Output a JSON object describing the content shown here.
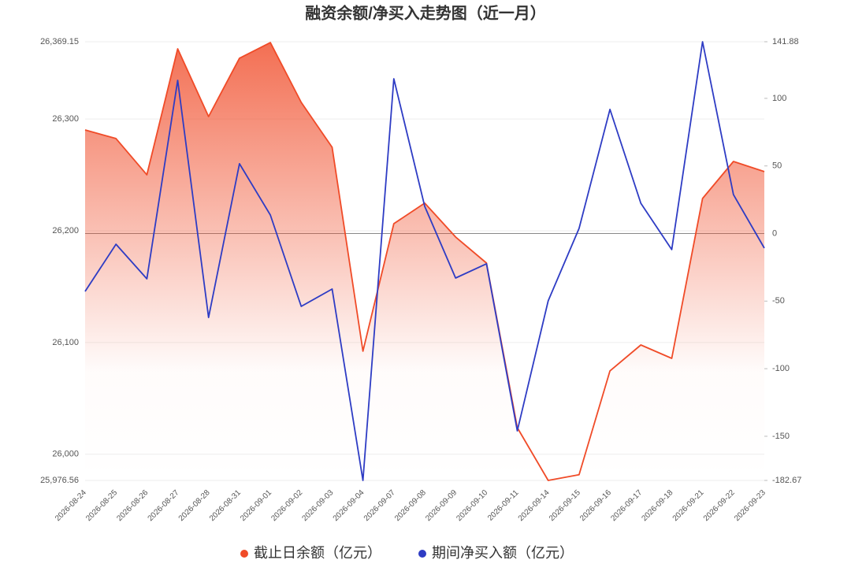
{
  "chart_data": {
    "type": "line",
    "title": "融资余额/净买入走势图（近一月）",
    "categories": [
      "2026-08-24",
      "2026-08-25",
      "2026-08-26",
      "2026-08-27",
      "2026-08-28",
      "2026-08-31",
      "2026-09-01",
      "2026-09-02",
      "2026-09-03",
      "2026-09-04",
      "2026-09-07",
      "2026-09-08",
      "2026-09-09",
      "2026-09-10",
      "2026-09-11",
      "2026-09-14",
      "2026-09-15",
      "2026-09-16",
      "2026-09-17",
      "2026-09-18",
      "2026-09-21",
      "2026-09-22",
      "2026-09-23"
    ],
    "series": [
      {
        "name": "截止日余额（亿元）",
        "color": "#f04b28",
        "area": true,
        "values": [
          26290.2,
          26282.5,
          26250.1,
          26362.8,
          26302.2,
          26354.4,
          26368.4,
          26314.9,
          26274.7,
          26092.2,
          26206.3,
          26224.7,
          26194.4,
          26171.1,
          26023.8,
          25976.56,
          25981.6,
          26074.6,
          26097.8,
          26085.8,
          26228.9,
          26262.0,
          26252.9
        ]
      },
      {
        "name": "期间净买入额（亿元）",
        "color": "#2e3cc4",
        "axis": "y2",
        "values": [
          -42.8,
          -7.9,
          -33.5,
          113.3,
          -62.1,
          51.6,
          13.7,
          -53.9,
          -41.1,
          -182.67,
          114.5,
          20.1,
          -32.9,
          -22.4,
          -146.0,
          -49.8,
          3.8,
          91.8,
          22.4,
          -11.9,
          141.88,
          28.8,
          -10.8
        ]
      }
    ],
    "ylim": [
      25976.56,
      26369.15
    ],
    "yticks": [
      {
        "value": 25976.56,
        "label": "25,976.56"
      },
      {
        "value": 26000,
        "label": "26,000"
      },
      {
        "value": 26100,
        "label": "26,100"
      },
      {
        "value": 26200,
        "label": "26,200"
      },
      {
        "value": 26300,
        "label": "26,300"
      },
      {
        "value": 26369.15,
        "label": "26,369.15"
      }
    ],
    "y2lim": [
      -182.67,
      141.88
    ],
    "y2ticks": [
      -182.67,
      -150,
      -100,
      -50,
      0,
      50,
      100,
      141.88
    ],
    "grid": true
  }
}
